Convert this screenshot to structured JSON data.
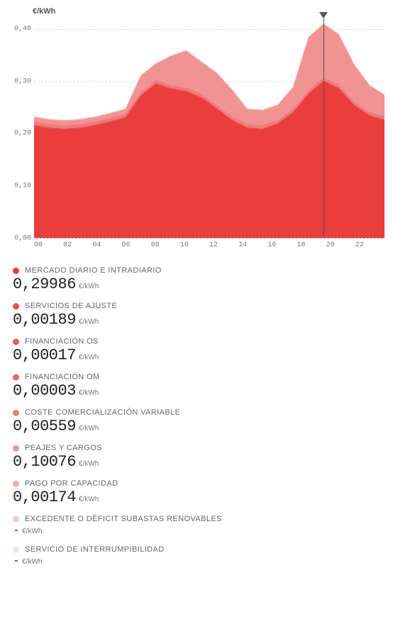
{
  "chart": {
    "type": "stacked-area",
    "y_axis_title": "€/kWh",
    "ylim": [
      0,
      0.42
    ],
    "yticks": [
      0.0,
      0.1,
      0.2,
      0.3,
      0.4
    ],
    "ytick_labels": [
      "0,00",
      "0,10",
      "0,20",
      "0,30",
      "0,40"
    ],
    "xlim": [
      0,
      23
    ],
    "xtick_labels": [
      "00",
      "02",
      "04",
      "06",
      "08",
      "10",
      "12",
      "14",
      "16",
      "18",
      "20",
      "22"
    ],
    "xtick_positions": [
      0,
      2,
      4,
      6,
      8,
      10,
      12,
      14,
      16,
      18,
      20,
      22
    ],
    "grid_color": "#dddddd",
    "axis_color": "#888888",
    "background_color": "#ffffff",
    "marker_hour": 19,
    "marker_color": "#555555",
    "hours": [
      0,
      1,
      2,
      3,
      4,
      5,
      6,
      7,
      8,
      9,
      10,
      11,
      12,
      13,
      14,
      15,
      16,
      17,
      18,
      19,
      20,
      21,
      22,
      23
    ],
    "series": [
      {
        "key": "mercado",
        "color": "#ea3d3d",
        "values": [
          0.215,
          0.21,
          0.208,
          0.21,
          0.215,
          0.222,
          0.23,
          0.272,
          0.295,
          0.285,
          0.28,
          0.268,
          0.247,
          0.225,
          0.21,
          0.208,
          0.218,
          0.24,
          0.275,
          0.3,
          0.286,
          0.254,
          0.234,
          0.225
        ]
      },
      {
        "key": "ajuste",
        "color": "#ea4e4e",
        "values": [
          0.0019,
          0.0019,
          0.0019,
          0.0019,
          0.0019,
          0.0019,
          0.0019,
          0.0019,
          0.0019,
          0.0019,
          0.0019,
          0.0019,
          0.0019,
          0.0019,
          0.0019,
          0.0019,
          0.0019,
          0.0019,
          0.0019,
          0.0019,
          0.0019,
          0.0019,
          0.0019,
          0.0019
        ]
      },
      {
        "key": "os",
        "color": "#eb5b5b",
        "values": [
          0.00017,
          0.00017,
          0.00017,
          0.00017,
          0.00017,
          0.00017,
          0.00017,
          0.00017,
          0.00017,
          0.00017,
          0.00017,
          0.00017,
          0.00017,
          0.00017,
          0.00017,
          0.00017,
          0.00017,
          0.00017,
          0.00017,
          0.00017,
          0.00017,
          0.00017,
          0.00017,
          0.00017
        ]
      },
      {
        "key": "om",
        "color": "#ec6969",
        "values": [
          3e-05,
          3e-05,
          3e-05,
          3e-05,
          3e-05,
          3e-05,
          3e-05,
          3e-05,
          3e-05,
          3e-05,
          3e-05,
          3e-05,
          3e-05,
          3e-05,
          3e-05,
          3e-05,
          3e-05,
          3e-05,
          3e-05,
          3e-05,
          3e-05,
          3e-05,
          3e-05,
          3e-05
        ]
      },
      {
        "key": "comerc",
        "color": "#ee7c7c",
        "values": [
          0.0056,
          0.0056,
          0.0056,
          0.0056,
          0.0056,
          0.0056,
          0.0056,
          0.0056,
          0.0056,
          0.0056,
          0.0056,
          0.0056,
          0.0056,
          0.0056,
          0.0056,
          0.0056,
          0.0056,
          0.0056,
          0.0056,
          0.0056,
          0.0056,
          0.0056,
          0.0056,
          0.0056
        ]
      },
      {
        "key": "peajes",
        "color": "#f19393",
        "values": [
          0.008,
          0.008,
          0.008,
          0.008,
          0.008,
          0.008,
          0.008,
          0.03,
          0.03,
          0.055,
          0.07,
          0.06,
          0.06,
          0.05,
          0.028,
          0.028,
          0.028,
          0.04,
          0.1,
          0.101,
          0.095,
          0.07,
          0.05,
          0.04
        ]
      },
      {
        "key": "capacidad",
        "color": "#f4aaaa",
        "values": [
          0.0017,
          0.0017,
          0.0017,
          0.0017,
          0.0017,
          0.0017,
          0.0017,
          0.0017,
          0.0017,
          0.0017,
          0.0017,
          0.0017,
          0.0017,
          0.0017,
          0.0017,
          0.0017,
          0.0017,
          0.0017,
          0.0017,
          0.0017,
          0.0017,
          0.0017,
          0.0017,
          0.0017
        ]
      }
    ]
  },
  "legend": {
    "unit": "€/kWh",
    "items": [
      {
        "label": "MERCADO DIARIO E INTRADIARIO",
        "value": "0,29986",
        "color": "#ea3d3d",
        "has_value": true
      },
      {
        "label": "SERVICIOS DE AJUSTE",
        "value": "0,00189",
        "color": "#ea4e4e",
        "has_value": true
      },
      {
        "label": "FINANCIACIÓN OS",
        "value": "0,00017",
        "color": "#eb5b5b",
        "has_value": true
      },
      {
        "label": "FINANCIACIÓN OM",
        "value": "0,00003",
        "color": "#ec6969",
        "has_value": true
      },
      {
        "label": "COSTE COMERCIALIZACIÓN VARIABLE",
        "value": "0,00559",
        "color": "#ee7c7c",
        "has_value": true
      },
      {
        "label": "PEAJES Y CARGOS",
        "value": "0,10076",
        "color": "#f19393",
        "has_value": true
      },
      {
        "label": "PAGO POR CAPACIDAD",
        "value": "0,00174",
        "color": "#f4aaaa",
        "has_value": true
      },
      {
        "label": "EXCEDENTE O DÉFICIT SUBASTAS RENOVABLES",
        "value": "-",
        "color": "#f8c6c6",
        "has_value": false
      },
      {
        "label": "SERVICIO DE INTERRUMPIBILIDAD",
        "value": "-",
        "color": "#fbdede",
        "has_value": false
      }
    ]
  }
}
